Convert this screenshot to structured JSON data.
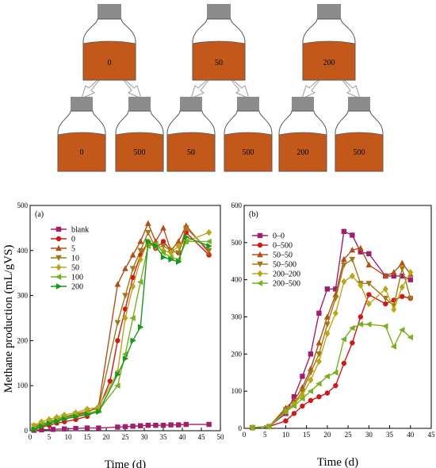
{
  "diagram": {
    "bottle_fill_color": "#c2581a",
    "cap_color": "#8c8c8c",
    "top_labels": [
      "0",
      "50",
      "200"
    ],
    "bottom_labels": [
      "0",
      "500",
      "50",
      "500",
      "200",
      "500"
    ]
  },
  "y_axis_title": "Methane production (mL/gVS)",
  "chart_data": [
    {
      "type": "line",
      "panel_label": "(a)",
      "xlabel": "Time (d)",
      "ylabel": "Methane production (mL/gVS)",
      "xlim": [
        0,
        50
      ],
      "ylim": [
        0,
        500
      ],
      "xticks": [
        0,
        5,
        10,
        15,
        20,
        25,
        30,
        35,
        40,
        45,
        50
      ],
      "yticks": [
        0,
        100,
        200,
        300,
        400,
        500
      ],
      "legend_position": "top-left",
      "series": [
        {
          "name": "blank",
          "color": "#a01e6e",
          "marker": "square",
          "x": [
            1,
            3,
            6,
            9,
            12,
            15,
            18,
            23,
            25,
            27,
            29,
            31,
            33,
            35,
            37,
            39,
            41,
            47
          ],
          "y": [
            1,
            2,
            3,
            4,
            5,
            6,
            6,
            8,
            9,
            10,
            11,
            12,
            12,
            12,
            13,
            13,
            14,
            14
          ]
        },
        {
          "name": "0",
          "color": "#d01818",
          "marker": "circle",
          "x": [
            1,
            3,
            5,
            7,
            9,
            12,
            15,
            18,
            21,
            23,
            25,
            27,
            29,
            31,
            33,
            35,
            37,
            39,
            41,
            47
          ],
          "y": [
            3,
            8,
            12,
            17,
            20,
            25,
            32,
            48,
            110,
            200,
            270,
            340,
            390,
            420,
            405,
            420,
            400,
            395,
            440,
            390
          ]
        },
        {
          "name": "5",
          "color": "#b05018",
          "marker": "triangle-up",
          "x": [
            1,
            3,
            5,
            7,
            9,
            12,
            15,
            18,
            23,
            25,
            27,
            29,
            31,
            33,
            35,
            37,
            39,
            41,
            47
          ],
          "y": [
            8,
            14,
            20,
            25,
            30,
            35,
            40,
            55,
            325,
            360,
            390,
            420,
            460,
            420,
            450,
            400,
            420,
            455,
            395
          ]
        },
        {
          "name": "10",
          "color": "#a07818",
          "marker": "triangle-down",
          "x": [
            1,
            3,
            5,
            7,
            9,
            12,
            15,
            18,
            23,
            25,
            27,
            29,
            31,
            33,
            35,
            37,
            39,
            41,
            47
          ],
          "y": [
            10,
            15,
            20,
            26,
            31,
            37,
            43,
            50,
            240,
            300,
            360,
            400,
            440,
            405,
            410,
            400,
            395,
            450,
            400
          ]
        },
        {
          "name": "50",
          "color": "#b8a818",
          "marker": "diamond",
          "x": [
            1,
            3,
            5,
            7,
            9,
            12,
            15,
            18,
            23,
            25,
            27,
            29,
            31,
            33,
            35,
            37,
            39,
            41,
            47
          ],
          "y": [
            12,
            20,
            25,
            30,
            35,
            40,
            48,
            52,
            130,
            250,
            320,
            380,
            420,
            410,
            400,
            395,
            410,
            420,
            440
          ]
        },
        {
          "name": "100",
          "color": "#78b020",
          "marker": "triangle-left",
          "x": [
            1,
            3,
            5,
            7,
            9,
            12,
            15,
            18,
            23,
            25,
            27,
            29,
            31,
            33,
            35,
            37,
            39,
            41,
            47
          ],
          "y": [
            5,
            12,
            18,
            23,
            28,
            33,
            38,
            45,
            100,
            170,
            250,
            330,
            410,
            415,
            395,
            385,
            380,
            420,
            420
          ]
        },
        {
          "name": "200",
          "color": "#18961e",
          "marker": "triangle-right",
          "x": [
            1,
            3,
            5,
            7,
            9,
            12,
            15,
            18,
            23,
            25,
            27,
            29,
            31,
            33,
            35,
            37,
            39,
            41,
            47
          ],
          "y": [
            3,
            10,
            16,
            21,
            26,
            31,
            36,
            42,
            125,
            160,
            200,
            230,
            420,
            410,
            385,
            380,
            375,
            430,
            410
          ]
        }
      ]
    },
    {
      "type": "line",
      "panel_label": "(b)",
      "xlabel": "Time (d)",
      "ylabel": "",
      "xlim": [
        0,
        45
      ],
      "ylim": [
        0,
        600
      ],
      "xticks": [
        0,
        5,
        10,
        15,
        20,
        25,
        30,
        35,
        40,
        45
      ],
      "yticks": [
        0,
        100,
        200,
        300,
        400,
        500,
        600
      ],
      "legend_position": "top-left",
      "series": [
        {
          "name": "0–0",
          "color": "#a01e6e",
          "marker": "square",
          "x": [
            2,
            6,
            10,
            12,
            14,
            16,
            18,
            20,
            22,
            24,
            26,
            28,
            30,
            34,
            36,
            38,
            40
          ],
          "y": [
            2,
            5,
            40,
            85,
            140,
            200,
            310,
            375,
            375,
            530,
            520,
            475,
            470,
            410,
            410,
            410,
            400
          ]
        },
        {
          "name": "0–500",
          "color": "#d01818",
          "marker": "circle",
          "x": [
            2,
            6,
            10,
            12,
            14,
            16,
            18,
            20,
            22,
            24,
            26,
            28,
            30,
            34,
            36,
            38,
            40
          ],
          "y": [
            2,
            5,
            20,
            40,
            60,
            75,
            85,
            95,
            115,
            175,
            230,
            300,
            360,
            335,
            345,
            355,
            350
          ]
        },
        {
          "name": "50–50",
          "color": "#b05018",
          "marker": "triangle-up",
          "x": [
            2,
            6,
            10,
            12,
            14,
            16,
            18,
            20,
            22,
            24,
            26,
            28,
            30,
            34,
            36,
            38,
            40
          ],
          "y": [
            2,
            5,
            55,
            75,
            110,
            160,
            230,
            300,
            360,
            455,
            480,
            485,
            440,
            410,
            420,
            445,
            415
          ]
        },
        {
          "name": "50–500",
          "color": "#a07818",
          "marker": "triangle-down",
          "x": [
            2,
            6,
            10,
            12,
            14,
            16,
            18,
            20,
            22,
            24,
            26,
            28,
            30,
            34,
            36,
            38,
            40
          ],
          "y": [
            2,
            5,
            50,
            65,
            100,
            150,
            200,
            280,
            350,
            440,
            455,
            390,
            390,
            350,
            330,
            430,
            350
          ]
        },
        {
          "name": "200–200",
          "color": "#b8a818",
          "marker": "diamond",
          "x": [
            2,
            6,
            10,
            12,
            14,
            16,
            18,
            20,
            22,
            24,
            26,
            28,
            30,
            34,
            36,
            38,
            40
          ],
          "y": [
            2,
            5,
            45,
            65,
            90,
            130,
            180,
            255,
            310,
            395,
            410,
            385,
            335,
            375,
            320,
            380,
            420
          ]
        },
        {
          "name": "200–500",
          "color": "#78b020",
          "marker": "triangle-left",
          "x": [
            2,
            6,
            10,
            12,
            14,
            16,
            18,
            20,
            22,
            24,
            26,
            28,
            30,
            34,
            36,
            38,
            40
          ],
          "y": [
            2,
            5,
            45,
            60,
            80,
            100,
            120,
            140,
            150,
            240,
            270,
            280,
            280,
            275,
            220,
            265,
            245
          ]
        }
      ]
    }
  ]
}
